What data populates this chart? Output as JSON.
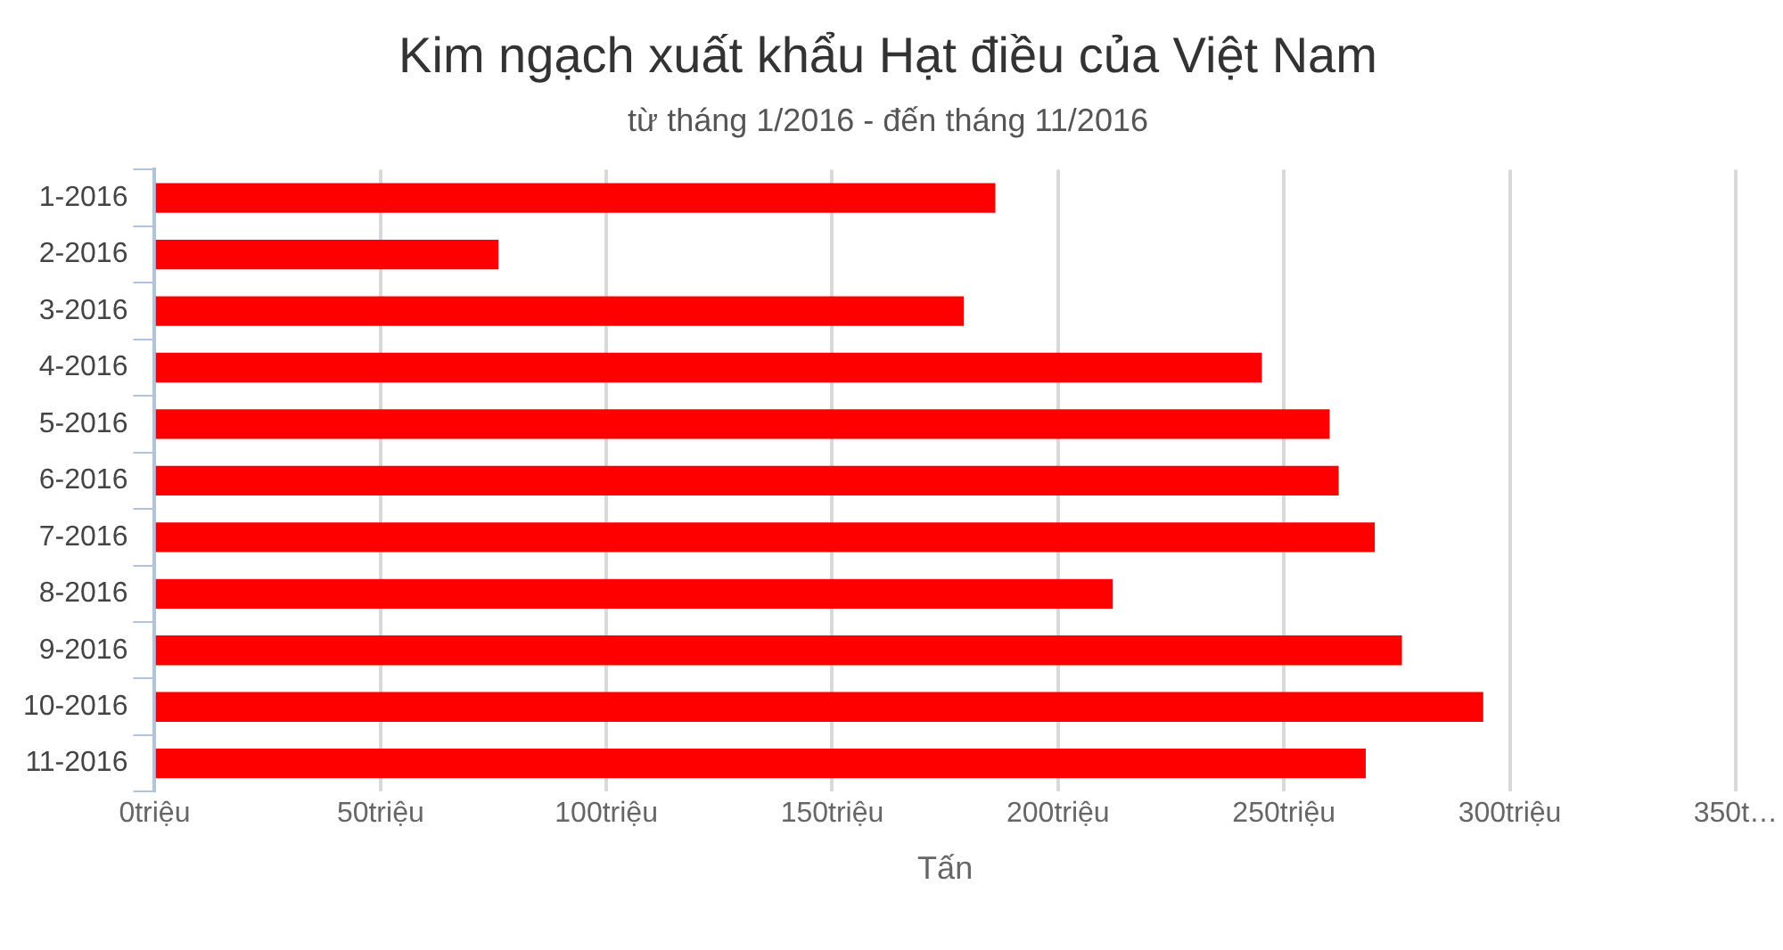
{
  "chart_data": {
    "type": "bar",
    "orientation": "horizontal",
    "title": "Kim ngạch xuất khẩu Hạt điều của Việt Nam",
    "subtitle": "từ tháng 1/2016 - đến tháng 11/2016",
    "xlabel": "Tấn",
    "categories": [
      "1-2016",
      "2-2016",
      "3-2016",
      "4-2016",
      "5-2016",
      "6-2016",
      "7-2016",
      "8-2016",
      "9-2016",
      "10-2016",
      "11-2016"
    ],
    "values": [
      186,
      76,
      179,
      245,
      260,
      262,
      270,
      212,
      276,
      294,
      268
    ],
    "color": "#ff0000",
    "xlim": [
      0,
      350
    ],
    "xticks": [
      {
        "value": 0,
        "label": "0triệu"
      },
      {
        "value": 50,
        "label": "50triệu"
      },
      {
        "value": 100,
        "label": "100triệu"
      },
      {
        "value": 150,
        "label": "150triệu"
      },
      {
        "value": 200,
        "label": "200triệu"
      },
      {
        "value": 250,
        "label": "250triệu"
      },
      {
        "value": 300,
        "label": "300triệu"
      },
      {
        "value": 350,
        "label": "350t…"
      }
    ],
    "grid": "x",
    "legend": false
  }
}
